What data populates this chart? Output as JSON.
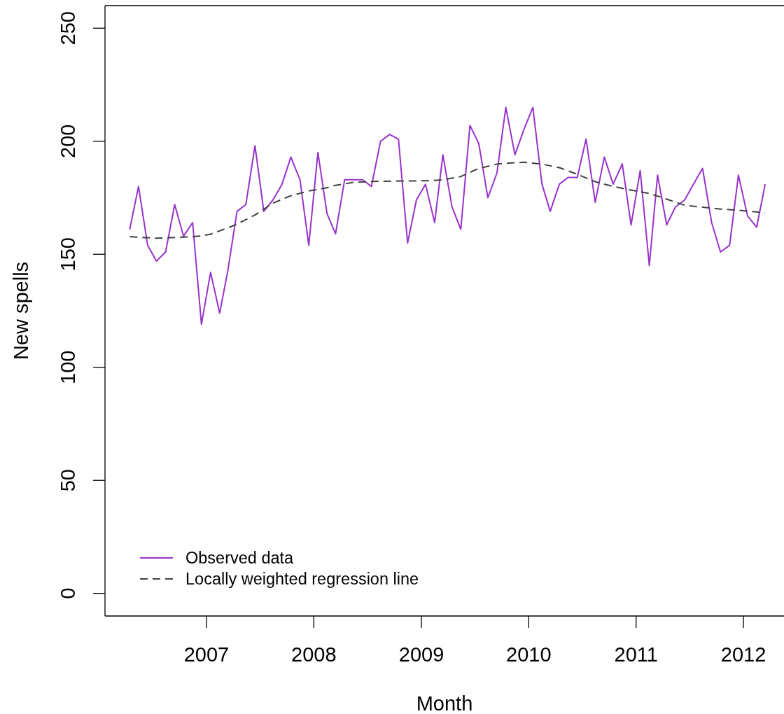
{
  "chart_data": {
    "type": "line",
    "xlabel": "Month",
    "ylabel": "New spells",
    "x": [
      "2006-04-15",
      "2006-05-15",
      "2006-06-15",
      "2006-07-15",
      "2006-08-15",
      "2006-09-15",
      "2006-10-15",
      "2006-11-15",
      "2006-12-15",
      "2007-01-15",
      "2007-02-15",
      "2007-03-15",
      "2007-04-15",
      "2007-05-15",
      "2007-06-15",
      "2007-07-15",
      "2007-08-15",
      "2007-09-15",
      "2007-10-15",
      "2007-11-15",
      "2007-12-15",
      "2008-01-15",
      "2008-02-15",
      "2008-03-15",
      "2008-04-15",
      "2008-05-15",
      "2008-06-15",
      "2008-07-15",
      "2008-08-15",
      "2008-09-15",
      "2008-10-15",
      "2008-11-15",
      "2008-12-15",
      "2009-01-15",
      "2009-02-15",
      "2009-03-15",
      "2009-04-15",
      "2009-05-15",
      "2009-06-15",
      "2009-07-15",
      "2009-08-15",
      "2009-09-15",
      "2009-10-15",
      "2009-11-15",
      "2009-12-15",
      "2010-01-15",
      "2010-02-15",
      "2010-03-15",
      "2010-04-15",
      "2010-05-15",
      "2010-06-15",
      "2010-07-15",
      "2010-08-15",
      "2010-09-15",
      "2010-10-15",
      "2010-11-15",
      "2010-12-15",
      "2011-01-15",
      "2011-02-15",
      "2011-03-15",
      "2011-04-15",
      "2011-05-15",
      "2011-06-15",
      "2011-07-15",
      "2011-08-15",
      "2011-09-15",
      "2011-10-15",
      "2011-11-15",
      "2011-12-15",
      "2012-01-15",
      "2012-02-15",
      "2012-03-15"
    ],
    "series": [
      {
        "name": "Observed data",
        "color": "#9932cc",
        "line_style": "solid",
        "values": [
          161,
          180,
          154,
          147,
          151,
          172,
          158,
          164,
          119,
          142,
          124,
          143,
          169,
          172,
          198,
          169,
          174,
          181,
          193,
          183,
          154,
          195,
          168,
          159,
          183,
          183,
          183,
          180,
          200,
          203,
          201,
          155,
          174,
          181,
          164,
          194,
          171,
          161,
          207,
          199,
          175,
          186,
          215,
          194,
          205,
          215,
          181,
          169,
          181,
          184,
          184,
          201,
          173,
          193,
          181,
          190,
          163,
          187,
          145,
          185,
          163,
          171,
          174,
          181,
          188,
          164,
          151,
          154,
          185,
          167,
          162,
          181
        ]
      },
      {
        "name": "Locally weighted regression line",
        "color": "#404040",
        "line_style": "dashed",
        "x": [
          "2006-04-15",
          "2006-07-15",
          "2006-10-15",
          "2006-12-15",
          "2007-01-15",
          "2007-03-15",
          "2007-04-15",
          "2007-06-15",
          "2007-08-15",
          "2007-10-15",
          "2007-12-15",
          "2008-02-15",
          "2008-03-15",
          "2008-05-15",
          "2008-07-15",
          "2008-10-15",
          "2009-01-15",
          "2009-03-15",
          "2009-05-15",
          "2009-07-15",
          "2009-09-15",
          "2009-11-15",
          "2009-12-15",
          "2010-02-15",
          "2010-04-15",
          "2010-06-15",
          "2010-08-15",
          "2010-10-15",
          "2010-12-15",
          "2011-02-15",
          "2011-04-15",
          "2011-06-15",
          "2011-08-15",
          "2011-10-15",
          "2011-12-15",
          "2012-02-15",
          "2012-03-15"
        ],
        "values": [
          157.8,
          157.1,
          157.6,
          158.1,
          158.9,
          161.7,
          163.3,
          167.4,
          172.6,
          175.9,
          178.0,
          179.4,
          180.5,
          181.8,
          182.2,
          182.4,
          182.5,
          182.9,
          184.4,
          188.0,
          189.9,
          190.5,
          190.7,
          189.9,
          188.3,
          185.4,
          182.1,
          180.0,
          178.4,
          176.9,
          174.4,
          171.7,
          170.8,
          170.0,
          169.5,
          168.7,
          168.3
        ]
      }
    ],
    "xlim": [
      "2006-01-21",
      "2012-05-18"
    ],
    "xticks": [
      "2007",
      "2008",
      "2009",
      "2010",
      "2011",
      "2012"
    ],
    "ylim": [
      -10,
      260
    ],
    "yticks": [
      0,
      50,
      100,
      150,
      200,
      250
    ],
    "legend": "bottom left",
    "marker": "none"
  }
}
